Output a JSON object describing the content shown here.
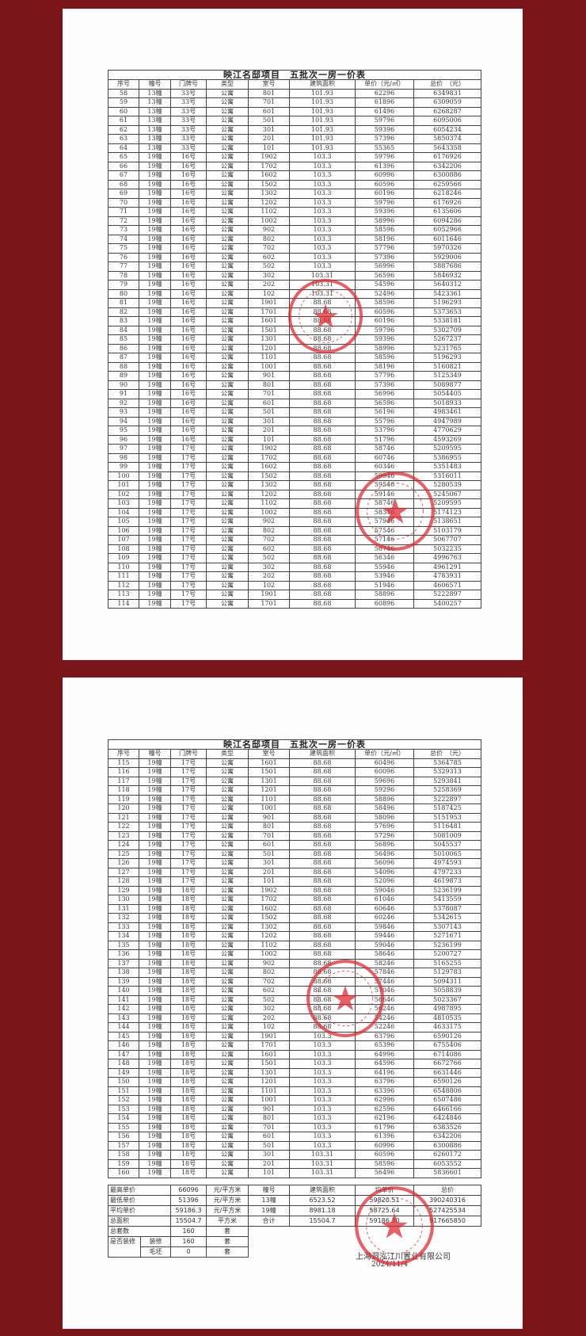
{
  "table_title": "映江名邸项目　五批次一房一价表",
  "columns": [
    "序号",
    "幢号",
    "门牌号",
    "类型",
    "室号",
    "建筑面积",
    "单价（元/㎡）",
    "总价　（元）"
  ],
  "page1_rows": [
    [
      "58",
      "13幢",
      "33号",
      "公寓",
      "801",
      "101.93",
      "62296",
      "6349831"
    ],
    [
      "59",
      "13幢",
      "33号",
      "公寓",
      "701",
      "101.93",
      "61896",
      "6309059"
    ],
    [
      "60",
      "13幢",
      "33号",
      "公寓",
      "601",
      "101.93",
      "61496",
      "6268287"
    ],
    [
      "61",
      "13幢",
      "33号",
      "公寓",
      "501",
      "101.93",
      "59796",
      "6095006"
    ],
    [
      "62",
      "13幢",
      "33号",
      "公寓",
      "301",
      "101.93",
      "59396",
      "6054234"
    ],
    [
      "63",
      "13幢",
      "33号",
      "公寓",
      "201",
      "101.93",
      "57396",
      "5850374"
    ],
    [
      "64",
      "13幢",
      "33号",
      "公寓",
      "101",
      "101.93",
      "55365",
      "5643358"
    ],
    [
      "65",
      "19幢",
      "16号",
      "公寓",
      "1902",
      "103.3",
      "59796",
      "6176926"
    ],
    [
      "66",
      "19幢",
      "16号",
      "公寓",
      "1702",
      "103.3",
      "61396",
      "6342206"
    ],
    [
      "67",
      "19幢",
      "16号",
      "公寓",
      "1602",
      "103.3",
      "60996",
      "6300886"
    ],
    [
      "68",
      "19幢",
      "16号",
      "公寓",
      "1502",
      "103.3",
      "60596",
      "6259566"
    ],
    [
      "69",
      "19幢",
      "16号",
      "公寓",
      "1302",
      "103.3",
      "60196",
      "6218246"
    ],
    [
      "70",
      "19幢",
      "16号",
      "公寓",
      "1202",
      "103.3",
      "59796",
      "6176926"
    ],
    [
      "71",
      "19幢",
      "16号",
      "公寓",
      "1102",
      "103.3",
      "59396",
      "6135606"
    ],
    [
      "72",
      "19幢",
      "16号",
      "公寓",
      "1002",
      "103.3",
      "58996",
      "6094286"
    ],
    [
      "73",
      "19幢",
      "16号",
      "公寓",
      "902",
      "103.3",
      "58596",
      "6052966"
    ],
    [
      "74",
      "19幢",
      "16号",
      "公寓",
      "802",
      "103.3",
      "58196",
      "6011646"
    ],
    [
      "75",
      "19幢",
      "16号",
      "公寓",
      "702",
      "103.3",
      "57796",
      "5970326"
    ],
    [
      "76",
      "19幢",
      "16号",
      "公寓",
      "602",
      "103.3",
      "57396",
      "5929006"
    ],
    [
      "77",
      "19幢",
      "16号",
      "公寓",
      "502",
      "103.3",
      "56996",
      "5887686"
    ],
    [
      "78",
      "19幢",
      "16号",
      "公寓",
      "302",
      "103.31",
      "56596",
      "5846932"
    ],
    [
      "79",
      "19幢",
      "16号",
      "公寓",
      "202",
      "103.31",
      "54596",
      "5640312"
    ],
    [
      "80",
      "19幢",
      "16号",
      "公寓",
      "102",
      "103.31",
      "52496",
      "5423361"
    ],
    [
      "81",
      "19幢",
      "16号",
      "公寓",
      "1901",
      "88.68",
      "58596",
      "5196293"
    ],
    [
      "82",
      "19幢",
      "16号",
      "公寓",
      "1701",
      "88.68",
      "60596",
      "5373653"
    ],
    [
      "83",
      "19幢",
      "16号",
      "公寓",
      "1601",
      "88.68",
      "60196",
      "5338181"
    ],
    [
      "84",
      "19幢",
      "16号",
      "公寓",
      "1501",
      "88.68",
      "59796",
      "5302709"
    ],
    [
      "85",
      "19幢",
      "16号",
      "公寓",
      "1301",
      "88.68",
      "59396",
      "5267237"
    ],
    [
      "86",
      "19幢",
      "16号",
      "公寓",
      "1201",
      "88.68",
      "58996",
      "5231765"
    ],
    [
      "87",
      "19幢",
      "16号",
      "公寓",
      "1101",
      "88.68",
      "58596",
      "5196293"
    ],
    [
      "88",
      "19幢",
      "16号",
      "公寓",
      "1001",
      "88.68",
      "58196",
      "5160821"
    ],
    [
      "89",
      "19幢",
      "16号",
      "公寓",
      "901",
      "88.68",
      "57796",
      "5125349"
    ],
    [
      "90",
      "19幢",
      "16号",
      "公寓",
      "801",
      "88.68",
      "57396",
      "5089877"
    ],
    [
      "91",
      "19幢",
      "16号",
      "公寓",
      "701",
      "88.68",
      "56996",
      "5054405"
    ],
    [
      "92",
      "19幢",
      "16号",
      "公寓",
      "601",
      "88.68",
      "56596",
      "5018933"
    ],
    [
      "93",
      "19幢",
      "16号",
      "公寓",
      "501",
      "88.68",
      "56196",
      "4983461"
    ],
    [
      "94",
      "19幢",
      "16号",
      "公寓",
      "301",
      "88.68",
      "55796",
      "4947989"
    ],
    [
      "95",
      "19幢",
      "16号",
      "公寓",
      "201",
      "88.68",
      "53796",
      "4770629"
    ],
    [
      "96",
      "19幢",
      "16号",
      "公寓",
      "101",
      "88.68",
      "51796",
      "4593269"
    ],
    [
      "97",
      "19幢",
      "17号",
      "公寓",
      "1902",
      "88.68",
      "58746",
      "5209595"
    ],
    [
      "98",
      "19幢",
      "17号",
      "公寓",
      "1702",
      "88.68",
      "60746",
      "5386955"
    ],
    [
      "99",
      "19幢",
      "17号",
      "公寓",
      "1602",
      "88.68",
      "60346",
      "5351483"
    ],
    [
      "100",
      "19幢",
      "17号",
      "公寓",
      "1502",
      "88.68",
      "59946",
      "5316011"
    ],
    [
      "101",
      "19幢",
      "17号",
      "公寓",
      "1302",
      "88.68",
      "59546",
      "5280539"
    ],
    [
      "102",
      "19幢",
      "17号",
      "公寓",
      "1202",
      "88.68",
      "59146",
      "5245067"
    ],
    [
      "103",
      "19幢",
      "17号",
      "公寓",
      "1102",
      "88.68",
      "58746",
      "5209595"
    ],
    [
      "104",
      "19幢",
      "17号",
      "公寓",
      "1002",
      "88.68",
      "58346",
      "5174123"
    ],
    [
      "105",
      "19幢",
      "17号",
      "公寓",
      "902",
      "88.68",
      "57946",
      "5138651"
    ],
    [
      "106",
      "19幢",
      "17号",
      "公寓",
      "802",
      "88.68",
      "57546",
      "5103179"
    ],
    [
      "107",
      "19幢",
      "17号",
      "公寓",
      "702",
      "88.68",
      "57146",
      "5067707"
    ],
    [
      "108",
      "19幢",
      "17号",
      "公寓",
      "602",
      "88.68",
      "56746",
      "5032235"
    ],
    [
      "109",
      "19幢",
      "17号",
      "公寓",
      "502",
      "88.68",
      "56346",
      "4996763"
    ],
    [
      "110",
      "19幢",
      "17号",
      "公寓",
      "302",
      "88.68",
      "55946",
      "4961291"
    ],
    [
      "111",
      "19幢",
      "17号",
      "公寓",
      "202",
      "88.68",
      "53946",
      "4783931"
    ],
    [
      "112",
      "19幢",
      "17号",
      "公寓",
      "102",
      "88.68",
      "51946",
      "4606571"
    ],
    [
      "113",
      "19幢",
      "17号",
      "公寓",
      "1901",
      "88.68",
      "58896",
      "5222897"
    ],
    [
      "114",
      "19幢",
      "17号",
      "公寓",
      "1701",
      "88.68",
      "60896",
      "5400257"
    ]
  ],
  "page2_rows": [
    [
      "115",
      "19幢",
      "17号",
      "公寓",
      "1601",
      "88.68",
      "60496",
      "5364785"
    ],
    [
      "116",
      "19幢",
      "17号",
      "公寓",
      "1501",
      "88.68",
      "60096",
      "5329313"
    ],
    [
      "117",
      "19幢",
      "17号",
      "公寓",
      "1301",
      "88.68",
      "59696",
      "5293841"
    ],
    [
      "118",
      "19幢",
      "17号",
      "公寓",
      "1201",
      "88.68",
      "59296",
      "5258369"
    ],
    [
      "119",
      "19幢",
      "17号",
      "公寓",
      "1101",
      "88.68",
      "58896",
      "5222897"
    ],
    [
      "120",
      "19幢",
      "17号",
      "公寓",
      "1001",
      "88.68",
      "58496",
      "5187425"
    ],
    [
      "121",
      "19幢",
      "17号",
      "公寓",
      "901",
      "88.68",
      "58096",
      "5151953"
    ],
    [
      "122",
      "19幢",
      "17号",
      "公寓",
      "801",
      "88.68",
      "57696",
      "5116481"
    ],
    [
      "123",
      "19幢",
      "17号",
      "公寓",
      "701",
      "88.68",
      "57296",
      "5081009"
    ],
    [
      "124",
      "19幢",
      "17号",
      "公寓",
      "601",
      "88.68",
      "56896",
      "5045537"
    ],
    [
      "125",
      "19幢",
      "17号",
      "公寓",
      "501",
      "88.68",
      "56496",
      "5010065"
    ],
    [
      "126",
      "19幢",
      "17号",
      "公寓",
      "301",
      "88.68",
      "56096",
      "4974593"
    ],
    [
      "127",
      "19幢",
      "17号",
      "公寓",
      "201",
      "88.68",
      "54096",
      "4797233"
    ],
    [
      "128",
      "19幢",
      "17号",
      "公寓",
      "101",
      "88.68",
      "52096",
      "4619873"
    ],
    [
      "129",
      "19幢",
      "18号",
      "公寓",
      "1902",
      "88.68",
      "59046",
      "5236199"
    ],
    [
      "130",
      "19幢",
      "18号",
      "公寓",
      "1702",
      "88.68",
      "61046",
      "5413559"
    ],
    [
      "131",
      "19幢",
      "18号",
      "公寓",
      "1602",
      "88.68",
      "60646",
      "5378087"
    ],
    [
      "132",
      "19幢",
      "18号",
      "公寓",
      "1502",
      "88.68",
      "60246",
      "5342615"
    ],
    [
      "133",
      "19幢",
      "18号",
      "公寓",
      "1302",
      "88.68",
      "59846",
      "5307143"
    ],
    [
      "134",
      "19幢",
      "18号",
      "公寓",
      "1202",
      "88.68",
      "59446",
      "5271671"
    ],
    [
      "135",
      "19幢",
      "18号",
      "公寓",
      "1102",
      "88.68",
      "59046",
      "5236199"
    ],
    [
      "136",
      "19幢",
      "18号",
      "公寓",
      "1002",
      "88.68",
      "58646",
      "5200727"
    ],
    [
      "137",
      "19幢",
      "18号",
      "公寓",
      "902",
      "88.68",
      "58246",
      "5165255"
    ],
    [
      "138",
      "19幢",
      "18号",
      "公寓",
      "802",
      "88.68",
      "57846",
      "5129783"
    ],
    [
      "139",
      "19幢",
      "18号",
      "公寓",
      "702",
      "88.68",
      "57446",
      "5094311"
    ],
    [
      "140",
      "19幢",
      "18号",
      "公寓",
      "602",
      "88.68",
      "57046",
      "5058839"
    ],
    [
      "141",
      "19幢",
      "18号",
      "公寓",
      "502",
      "88.68",
      "56646",
      "5023367"
    ],
    [
      "142",
      "19幢",
      "18号",
      "公寓",
      "302",
      "88.68",
      "56246",
      "4987895"
    ],
    [
      "143",
      "19幢",
      "18号",
      "公寓",
      "202",
      "88.68",
      "54246",
      "4810535"
    ],
    [
      "144",
      "19幢",
      "18号",
      "公寓",
      "102",
      "88.68",
      "52246",
      "4633175"
    ],
    [
      "145",
      "19幢",
      "18号",
      "公寓",
      "1901",
      "103.3",
      "63796",
      "6590126"
    ],
    [
      "146",
      "19幢",
      "18号",
      "公寓",
      "1701",
      "103.3",
      "65396",
      "6755406"
    ],
    [
      "147",
      "19幢",
      "18号",
      "公寓",
      "1601",
      "103.3",
      "64996",
      "6714086"
    ],
    [
      "148",
      "19幢",
      "18号",
      "公寓",
      "1501",
      "103.3",
      "64596",
      "6672766"
    ],
    [
      "149",
      "19幢",
      "18号",
      "公寓",
      "1301",
      "103.3",
      "64196",
      "6631446"
    ],
    [
      "150",
      "19幢",
      "18号",
      "公寓",
      "1201",
      "103.3",
      "63796",
      "6590126"
    ],
    [
      "151",
      "19幢",
      "18号",
      "公寓",
      "1101",
      "103.3",
      "63396",
      "6548806"
    ],
    [
      "152",
      "19幢",
      "18号",
      "公寓",
      "1001",
      "103.3",
      "62996",
      "6507486"
    ],
    [
      "153",
      "19幢",
      "18号",
      "公寓",
      "901",
      "103.3",
      "62596",
      "6466166"
    ],
    [
      "154",
      "19幢",
      "18号",
      "公寓",
      "801",
      "103.3",
      "62196",
      "6424846"
    ],
    [
      "155",
      "19幢",
      "18号",
      "公寓",
      "701",
      "103.3",
      "61796",
      "6383526"
    ],
    [
      "156",
      "19幢",
      "18号",
      "公寓",
      "601",
      "103.3",
      "61396",
      "6342206"
    ],
    [
      "157",
      "19幢",
      "18号",
      "公寓",
      "501",
      "103.3",
      "60996",
      "6300886"
    ],
    [
      "158",
      "19幢",
      "18号",
      "公寓",
      "301",
      "103.31",
      "60596",
      "6260172"
    ],
    [
      "159",
      "19幢",
      "18号",
      "公寓",
      "201",
      "103.31",
      "58596",
      "6053552"
    ],
    [
      "160",
      "19幢",
      "18号",
      "公寓",
      "101",
      "103.31",
      "56496",
      "5836601"
    ]
  ],
  "summary": {
    "max_price_label": "最高单价",
    "max_price": "66096",
    "max_price_unit": "元/平方米",
    "min_price_label": "最低单价",
    "min_price": "51396",
    "min_price_unit": "元/平方米",
    "avg_price_label": "平均单价",
    "avg_price": "59186.3",
    "avg_price_unit": "元/平方米",
    "total_area_label": "总面积",
    "total_area": "15504.7",
    "total_area_unit": "平方米",
    "total_units_label": "总套数",
    "total_units": "160",
    "total_units_unit": "套",
    "decorated_label": "是否装修",
    "decorated_sub": "装修",
    "decorated": "160",
    "decorated_unit": "套",
    "rough_sub": "毛坯",
    "rough": "0",
    "rough_unit": "套",
    "bldg_header": [
      "幢号",
      "建筑面积",
      "均单价",
      "总价"
    ],
    "bldg_rows": [
      [
        "13幢",
        "6523.52",
        "59820.51",
        "390240316"
      ],
      [
        "19幢",
        "8981.18",
        "58725.64",
        "527425534"
      ],
      [
        "合计",
        "15504.7",
        "59186.30",
        "917665850"
      ]
    ]
  },
  "company": "上海洞泓江川置业有限公司",
  "date": "2024/11/4",
  "colors": {
    "background": "#7b1519",
    "stamp": "#e0252b"
  }
}
